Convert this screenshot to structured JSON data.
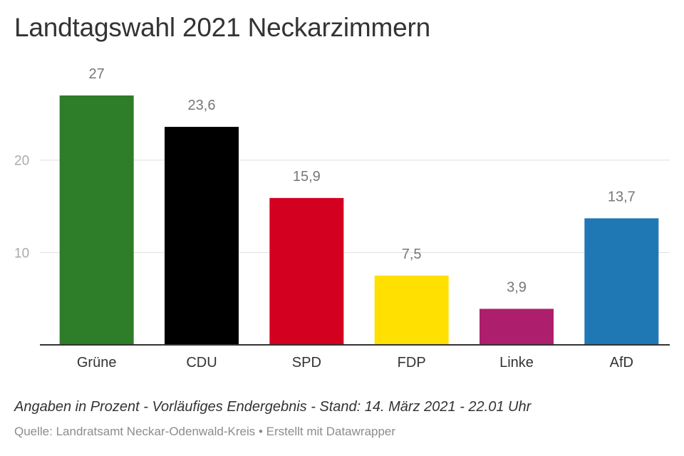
{
  "header": {
    "title": "Landtagswahl 2021 Neckarzimmern"
  },
  "footer": {
    "notes": "Angaben in Prozent - Vorläufiges Endergebnis - Stand: 14. März 2021 - 22.01 Uhr",
    "source": "Quelle: Landratsamt Neckar-Odenwald-Kreis • Erstellt mit Datawrapper"
  },
  "chart_data": {
    "type": "bar",
    "title": "Landtagswahl 2021 Neckarzimmern",
    "xlabel": "",
    "ylabel": "",
    "categories": [
      "Grüne",
      "CDU",
      "SPD",
      "FDP",
      "Linke",
      "AfD"
    ],
    "values": [
      27,
      23.6,
      15.9,
      7.5,
      3.9,
      13.7
    ],
    "value_labels": [
      "27",
      "23,6",
      "15,9",
      "7,5",
      "3,9",
      "13,7"
    ],
    "colors": [
      "#2e7d28",
      "#000000",
      "#d4001f",
      "#ffe000",
      "#ad1f6d",
      "#1f77b4"
    ],
    "yticks": [
      10,
      20
    ],
    "ylim": [
      0,
      27
    ],
    "grid": true,
    "legend": "none"
  }
}
